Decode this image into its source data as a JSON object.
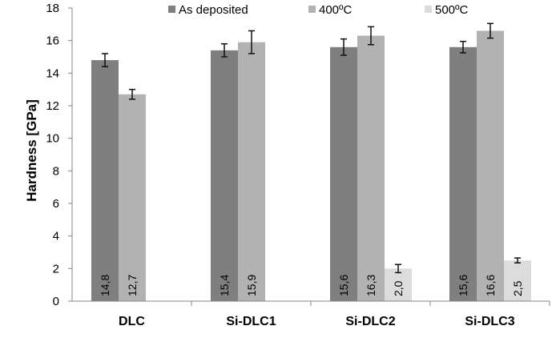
{
  "chart_data": {
    "type": "bar",
    "title": "",
    "xlabel": "",
    "ylabel": "Hardness [GPa]",
    "ylim": [
      0,
      18
    ],
    "yticks": [
      0,
      2,
      4,
      6,
      8,
      10,
      12,
      14,
      16,
      18
    ],
    "categories": [
      "DLC",
      "Si-DLC1",
      "Si-DLC2",
      "Si-DLC3"
    ],
    "grid": false,
    "legend_position": "top",
    "series": [
      {
        "name": "As deposited",
        "color": "#7f7f7f",
        "values": [
          14.8,
          15.4,
          15.6,
          15.6
        ],
        "errors": [
          0.4,
          0.4,
          0.5,
          0.35
        ],
        "labels": [
          "14,8",
          "15,4",
          "15,6",
          "15,6"
        ]
      },
      {
        "name": "400ºC",
        "color": "#b2b2b2",
        "values": [
          12.7,
          15.9,
          16.3,
          16.6
        ],
        "errors": [
          0.3,
          0.7,
          0.55,
          0.45
        ],
        "labels": [
          "12,7",
          "15,9",
          "16,3",
          "16,6"
        ]
      },
      {
        "name": "500ºC",
        "color": "#dcdcdc",
        "values": [
          null,
          null,
          2.0,
          2.5
        ],
        "errors": [
          null,
          null,
          0.25,
          0.15
        ],
        "labels": [
          "",
          "",
          "2,0",
          "2,5"
        ]
      }
    ]
  }
}
